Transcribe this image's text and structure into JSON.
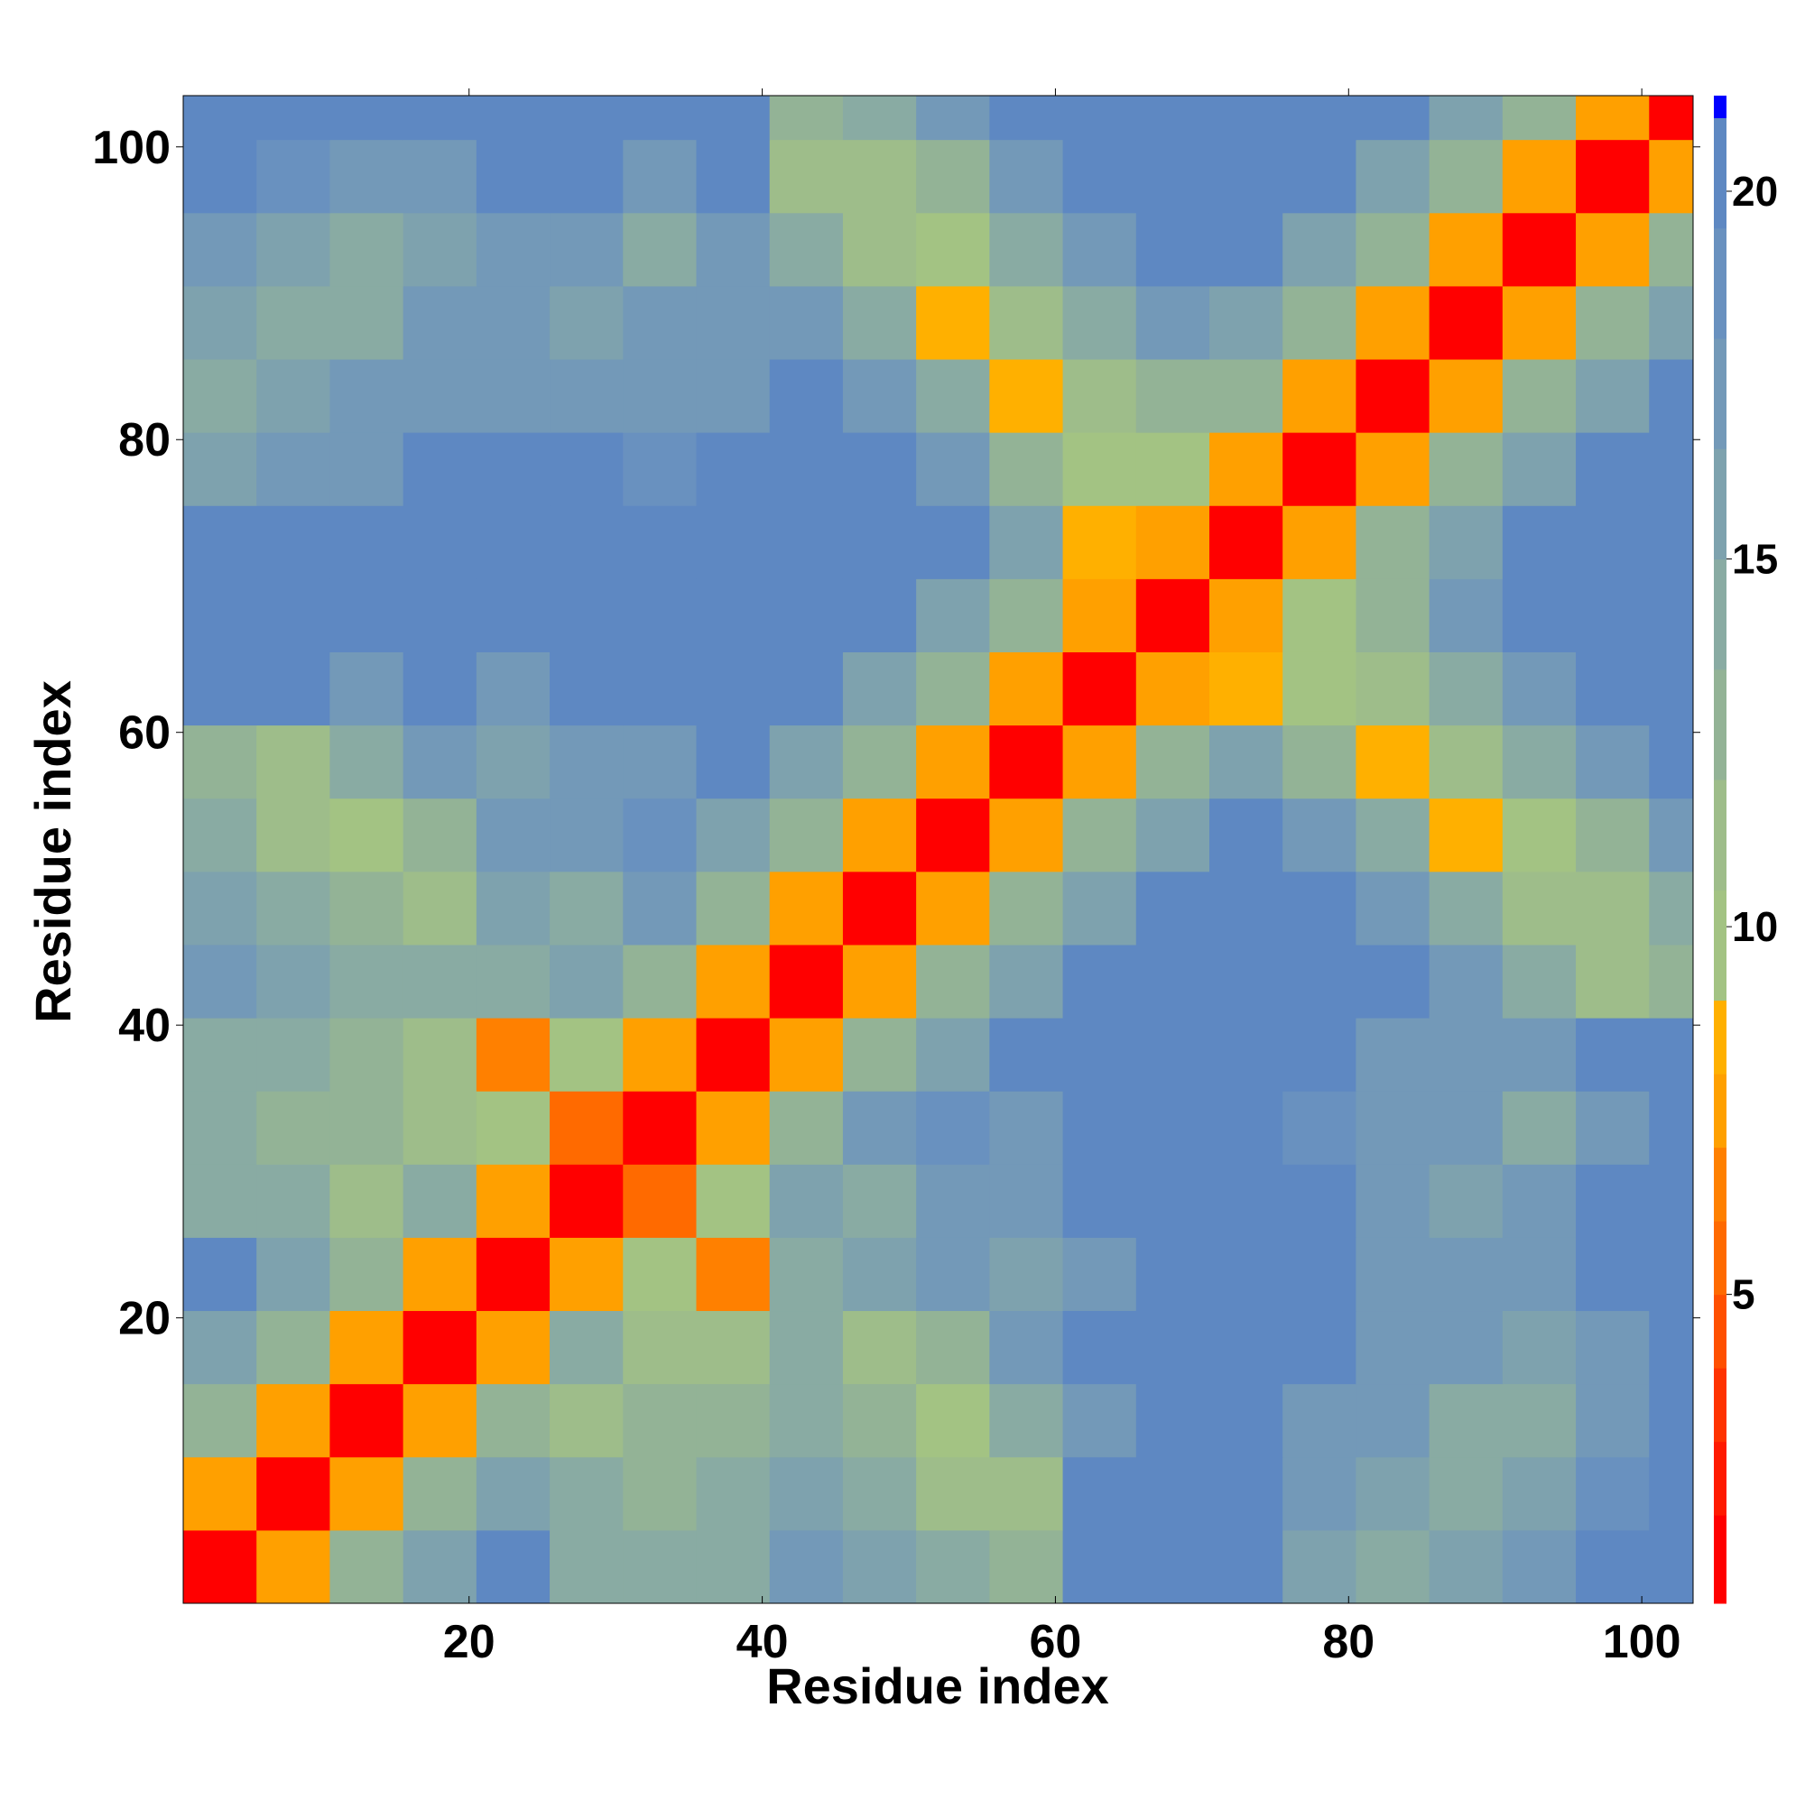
{
  "chart_data": {
    "type": "heatmap",
    "xlabel": "Residue index",
    "ylabel": "Residue index",
    "xlim": [
      0.5,
      103.5
    ],
    "ylim": [
      0.5,
      103.5
    ],
    "xticks": [
      20,
      40,
      60,
      80,
      100
    ],
    "yticks": [
      20,
      40,
      60,
      80,
      100
    ],
    "xbins": [
      0.5,
      5.5,
      10.5,
      15.5,
      20.5,
      25.5,
      30.5,
      35.5,
      40.5,
      45.5,
      50.5,
      55.5,
      60.5,
      65.5,
      70.5,
      75.5,
      80.5,
      85.5,
      90.5,
      95.5,
      100.5,
      103.5
    ],
    "ybins": [
      0.5,
      5.5,
      10.5,
      15.5,
      20.5,
      25.5,
      30.5,
      35.5,
      40.5,
      45.5,
      50.5,
      55.5,
      60.5,
      65.5,
      70.5,
      75.5,
      80.5,
      85.5,
      90.5,
      95.5,
      100.5,
      103.5
    ],
    "z": [
      [
        2,
        8,
        13,
        16,
        21,
        15,
        14,
        15,
        18,
        16,
        15,
        13,
        21,
        21,
        20,
        16,
        15,
        16,
        17,
        21,
        21
      ],
      [
        8,
        2,
        8,
        13,
        16,
        14,
        13,
        15,
        16,
        15,
        12,
        11,
        20,
        21,
        21,
        17,
        16,
        15,
        16,
        19,
        21
      ],
      [
        13,
        8,
        2,
        8,
        13,
        12,
        13,
        13,
        15,
        13,
        10,
        14,
        17,
        21,
        21,
        18,
        17,
        15,
        15,
        18,
        21
      ],
      [
        16,
        13,
        8,
        2,
        8,
        15,
        12,
        12,
        14,
        12,
        13,
        17,
        21,
        21,
        21,
        21,
        18,
        17,
        16,
        17,
        21
      ],
      [
        21,
        16,
        13,
        8,
        2,
        8,
        10,
        7,
        15,
        16,
        17,
        16,
        18,
        21,
        21,
        21,
        18,
        17,
        17,
        21,
        21
      ],
      [
        15,
        14,
        12,
        15,
        8,
        2,
        6,
        10,
        16,
        15,
        17,
        18,
        21,
        21,
        21,
        21,
        17,
        16,
        17,
        21,
        21
      ],
      [
        14,
        13,
        13,
        12,
        10,
        6,
        2,
        8,
        13,
        17,
        19,
        17,
        21,
        21,
        21,
        19,
        18,
        17,
        14,
        18,
        21
      ],
      [
        15,
        15,
        13,
        12,
        7,
        10,
        8,
        2,
        8,
        13,
        16,
        21,
        21,
        21,
        21,
        21,
        18,
        17,
        17,
        21,
        21
      ],
      [
        18,
        16,
        15,
        14,
        15,
        16,
        13,
        8,
        2,
        8,
        13,
        16,
        21,
        21,
        21,
        21,
        21,
        17,
        15,
        12,
        13
      ],
      [
        16,
        15,
        13,
        12,
        16,
        15,
        17,
        13,
        8,
        2,
        8,
        13,
        16,
        21,
        21,
        21,
        18,
        14,
        11,
        12,
        14
      ],
      [
        15,
        12,
        10,
        13,
        17,
        17,
        19,
        16,
        13,
        8,
        2,
        8,
        13,
        16,
        21,
        18,
        14,
        9,
        10,
        13,
        17
      ],
      [
        13,
        11,
        14,
        17,
        16,
        18,
        17,
        21,
        16,
        13,
        8,
        2,
        8,
        13,
        16,
        13,
        9,
        11,
        14,
        18,
        21
      ],
      [
        21,
        20,
        17,
        21,
        18,
        21,
        21,
        21,
        21,
        16,
        13,
        8,
        2,
        8,
        9,
        10,
        11,
        15,
        18,
        21,
        21
      ],
      [
        21,
        21,
        21,
        21,
        21,
        21,
        21,
        21,
        21,
        21,
        16,
        13,
        8,
        2,
        8,
        10,
        13,
        17,
        21,
        21,
        21
      ],
      [
        20,
        21,
        21,
        21,
        21,
        21,
        21,
        21,
        21,
        21,
        21,
        16,
        9,
        8,
        2,
        8,
        13,
        16,
        21,
        21,
        21
      ],
      [
        16,
        17,
        18,
        21,
        21,
        21,
        19,
        21,
        21,
        21,
        18,
        13,
        10,
        10,
        8,
        2,
        8,
        13,
        16,
        21,
        21
      ],
      [
        15,
        16,
        17,
        18,
        18,
        17,
        18,
        18,
        21,
        18,
        14,
        9,
        11,
        13,
        13,
        8,
        2,
        8,
        13,
        16,
        21
      ],
      [
        16,
        15,
        15,
        17,
        17,
        16,
        17,
        17,
        17,
        14,
        9,
        11,
        15,
        17,
        16,
        13,
        8,
        2,
        8,
        13,
        16
      ],
      [
        17,
        16,
        15,
        16,
        17,
        17,
        14,
        17,
        15,
        11,
        10,
        14,
        18,
        21,
        21,
        16,
        13,
        8,
        2,
        8,
        13
      ],
      [
        21,
        19,
        18,
        17,
        21,
        21,
        18,
        21,
        12,
        12,
        13,
        18,
        21,
        21,
        21,
        21,
        16,
        13,
        8,
        2,
        8
      ],
      [
        21,
        21,
        21,
        21,
        21,
        21,
        21,
        21,
        13,
        14,
        17,
        21,
        21,
        21,
        21,
        21,
        21,
        16,
        13,
        8,
        2
      ]
    ],
    "colorbar": {
      "lim": [
        0.8,
        21.3
      ],
      "ticks": [
        5,
        10,
        15,
        20
      ],
      "levels": [
        0.8,
        2,
        3,
        4,
        5,
        6,
        7,
        8,
        9,
        10.5,
        12,
        13.5,
        15,
        16.5,
        18,
        19.5,
        21,
        21.3
      ],
      "colors": [
        "#ff0000",
        "#ff1a00",
        "#ff3300",
        "#ff5000",
        "#ff6a00",
        "#ff8000",
        "#ffa000",
        "#ffb000",
        "#a3c383",
        "#9ebd8a",
        "#93b396",
        "#89aba3",
        "#7ea2ae",
        "#7399b8",
        "#6991bf",
        "#5e88c2",
        "#0000ff"
      ]
    }
  }
}
